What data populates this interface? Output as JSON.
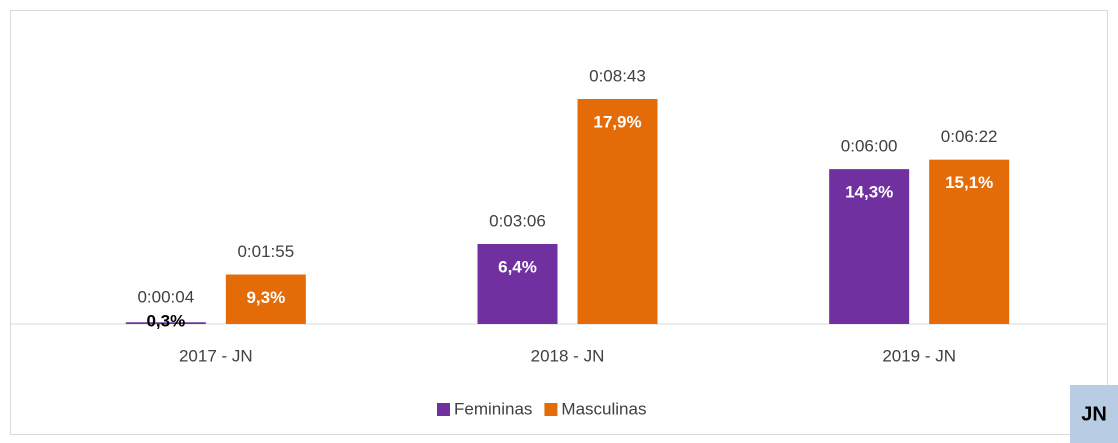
{
  "chart_data": {
    "type": "bar",
    "categories": [
      "2017 - JN",
      "2018 - JN",
      "2019 - JN"
    ],
    "series": [
      {
        "name": "Femininas",
        "color": "#7030a0",
        "values": [
          4,
          186,
          360
        ],
        "value_labels": [
          "0:00:04",
          "0:03:06",
          "0:06:00"
        ],
        "share_labels": [
          "0,3%",
          "6,4%",
          "14,3%"
        ]
      },
      {
        "name": "Masculinas",
        "color": "#e36c09",
        "values": [
          115,
          523,
          382
        ],
        "value_labels": [
          "0:01:55",
          "0:08:43",
          "0:06:22"
        ],
        "share_labels": [
          "9,3%",
          "17,9%",
          "15,1%"
        ]
      }
    ],
    "badge": "JN"
  }
}
